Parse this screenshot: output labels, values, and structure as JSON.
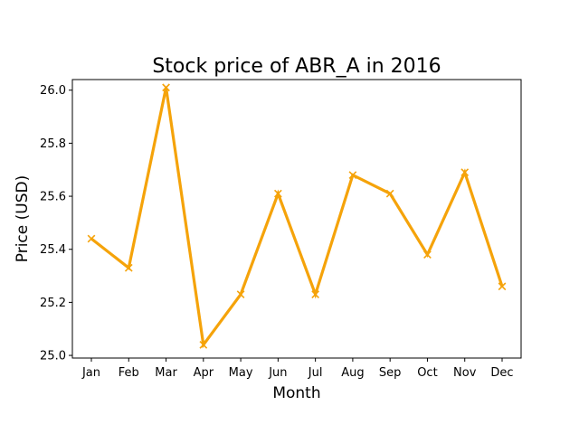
{
  "chart_data": {
    "type": "line",
    "title": "Stock price of ABR_A in 2016",
    "xlabel": "Month",
    "ylabel": "Price (USD)",
    "categories": [
      "Jan",
      "Feb",
      "Mar",
      "Apr",
      "May",
      "Jun",
      "Jul",
      "Aug",
      "Sep",
      "Oct",
      "Nov",
      "Dec"
    ],
    "series": [
      {
        "values": [
          25.44,
          25.33,
          26.01,
          25.04,
          25.23,
          25.61,
          25.23,
          25.68,
          25.61,
          25.38,
          25.69,
          25.26
        ],
        "color": "#f5a30a",
        "marker": "x"
      }
    ],
    "ylim": [
      24.99,
      26.04
    ],
    "yticks": [
      25.0,
      25.2,
      25.4,
      25.6,
      25.8,
      26.0
    ],
    "ytick_labels": [
      "25.0",
      "25.2",
      "25.4",
      "25.6",
      "25.8",
      "26.0"
    ],
    "grid": false,
    "legend": "none"
  }
}
